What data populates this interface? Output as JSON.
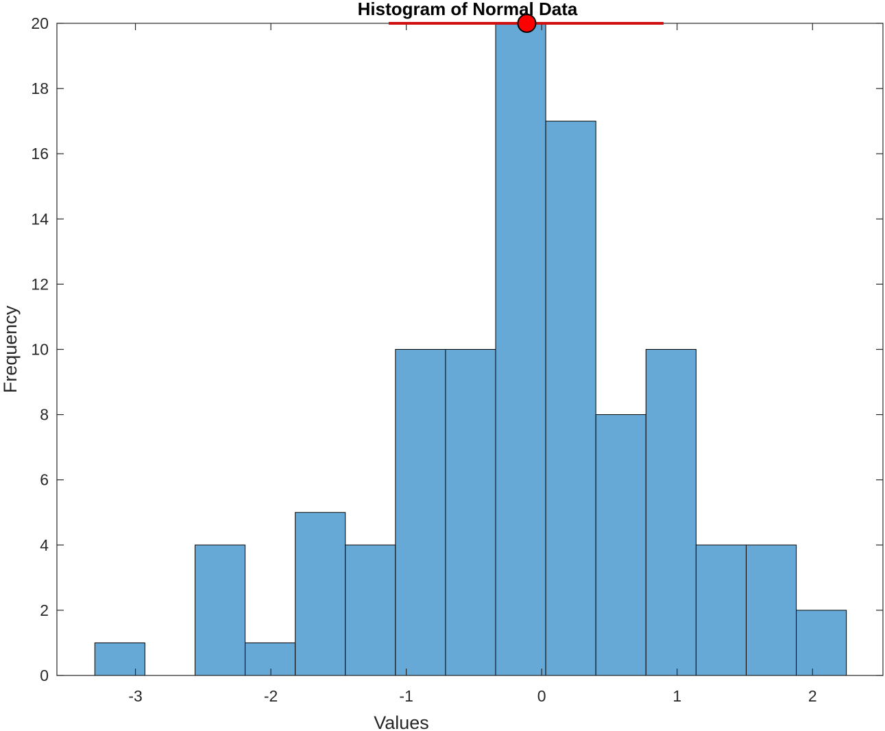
{
  "chart_data": {
    "type": "bar",
    "title": "Histogram of Normal Data",
    "xlabel": "Values",
    "ylabel": "Frequency",
    "xlim": [
      -3.58,
      2.52
    ],
    "ylim": [
      0,
      20
    ],
    "grid": false,
    "xticks": [
      -3,
      -2,
      -1,
      0,
      1,
      2
    ],
    "yticks": [
      0,
      2,
      4,
      6,
      8,
      10,
      12,
      14,
      16,
      18,
      20
    ],
    "bin_edges": [
      -3.3,
      -2.93,
      -2.56,
      -2.19,
      -1.82,
      -1.45,
      -1.08,
      -0.71,
      -0.34,
      0.03,
      0.4,
      0.77,
      1.14,
      1.51,
      1.88,
      2.25
    ],
    "values": [
      1,
      0,
      4,
      1,
      5,
      4,
      10,
      10,
      20,
      17,
      8,
      10,
      4,
      4,
      2
    ],
    "bar_color": "#67A9D6",
    "bar_edge_color": "#000000",
    "annotations": {
      "marker": {
        "x": -0.11,
        "y": 20,
        "color": "#FF0000"
      },
      "line": {
        "x_start": -1.13,
        "x_end": 0.9,
        "y": 20,
        "color": "#D01010"
      }
    }
  }
}
